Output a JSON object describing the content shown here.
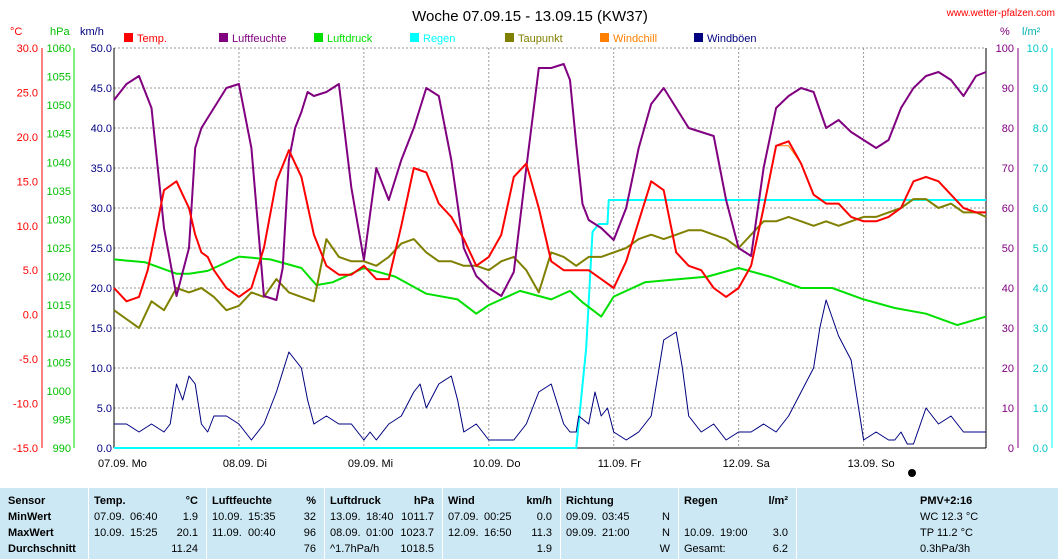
{
  "title": "Woche 07.09.15 - 13.09.15 (KW37)",
  "site": "www.wetter-pfalzen.com",
  "units": {
    "temp": "°C",
    "pressure": "hPa",
    "wind": "km/h",
    "humidity": "%",
    "rain": "l/m²"
  },
  "colors": {
    "temp": "#ff0000",
    "humidity": "#800080",
    "pressure": "#00e000",
    "rain": "#00ffff",
    "dewpoint": "#808000",
    "windchill": "#ff8000",
    "gust": "#000080",
    "grid": "#999999",
    "stats_bg": "#cce8f4"
  },
  "legend": [
    {
      "label": "Temp.",
      "color": "#ff0000"
    },
    {
      "label": "Luftfeuchte",
      "color": "#800080"
    },
    {
      "label": "Luftdruck",
      "color": "#00e000"
    },
    {
      "label": "Regen",
      "color": "#00ffff"
    },
    {
      "label": "Taupunkt",
      "color": "#808000"
    },
    {
      "label": "Windchill",
      "color": "#ff8000"
    },
    {
      "label": "Windböen",
      "color": "#000080"
    }
  ],
  "chart_data": {
    "type": "line",
    "title": "Woche 07.09.15 - 13.09.15 (KW37)",
    "x_unit": "days",
    "x_range": [
      0,
      6.98
    ],
    "day_labels": [
      "07.09. Mo",
      "08.09. Di",
      "09.09. Mi",
      "10.09. Do",
      "11.09. Fr",
      "12.09. Sa",
      "13.09. So"
    ],
    "axes": {
      "temp": {
        "ticks": [
          "30.0",
          "25.0",
          "20.0",
          "15.0",
          "10.0",
          "5.0",
          "0.0",
          "-5.0",
          "-10.0",
          "-15.0"
        ],
        "range": [
          -15,
          30
        ]
      },
      "pressure": {
        "ticks": [
          "1060",
          "1055",
          "1050",
          "1045",
          "1040",
          "1035",
          "1030",
          "1025",
          "1020",
          "1015",
          "1010",
          "1005",
          "1000",
          "995",
          "990"
        ],
        "range": [
          990,
          1060
        ]
      },
      "wind": {
        "ticks": [
          "50.0",
          "45.0",
          "40.0",
          "35.0",
          "30.0",
          "25.0",
          "20.0",
          "15.0",
          "10.0",
          "5.0",
          "0.0"
        ],
        "range": [
          0,
          50
        ]
      },
      "humidity": {
        "ticks": [
          "100",
          "90",
          "80",
          "70",
          "60",
          "50",
          "40",
          "30",
          "20",
          "10",
          "0"
        ],
        "range": [
          0,
          100
        ]
      },
      "rain": {
        "ticks": [
          "10.0",
          "9.0",
          "8.0",
          "7.0",
          "6.0",
          "5.0",
          "4.0",
          "3.0",
          "2.0",
          "1.0",
          "0.0"
        ],
        "range": [
          0,
          10
        ]
      }
    },
    "grid": true,
    "series": [
      {
        "name": "Temp.",
        "axis": "temp",
        "color": "#ff0000",
        "x": [
          0,
          0.1,
          0.2,
          0.27,
          0.4,
          0.5,
          0.55,
          0.6,
          0.65,
          0.7,
          0.75,
          0.8,
          0.9,
          1.0,
          1.1,
          1.2,
          1.3,
          1.4,
          1.5,
          1.6,
          1.7,
          1.8,
          1.9,
          2.0,
          2.1,
          2.2,
          2.3,
          2.4,
          2.5,
          2.6,
          2.7,
          2.8,
          2.9,
          3.0,
          3.1,
          3.2,
          3.3,
          3.4,
          3.5,
          3.6,
          3.7,
          3.8,
          3.9,
          4.0,
          4.1,
          4.2,
          4.3,
          4.4,
          4.5,
          4.6,
          4.7,
          4.8,
          4.9,
          5.0,
          5.1,
          5.2,
          5.3,
          5.4,
          5.5,
          5.6,
          5.7,
          5.8,
          5.9,
          6.0,
          6.1,
          6.2,
          6.3,
          6.4,
          6.5,
          6.6,
          6.7,
          6.8,
          6.9,
          6.98
        ],
        "y": [
          3.0,
          1.5,
          2.0,
          5.0,
          14.0,
          15.0,
          13.5,
          12.0,
          9.0,
          7.0,
          6.5,
          5.0,
          3.0,
          2.0,
          3.0,
          7.5,
          15.0,
          18.5,
          15.5,
          9.0,
          5.5,
          4.5,
          4.5,
          5.5,
          4.0,
          4.0,
          10.0,
          16.5,
          16.0,
          12.5,
          11.0,
          8.5,
          5.5,
          6.5,
          9.0,
          15.5,
          17.0,
          12.0,
          6.0,
          5.0,
          5.0,
          5.0,
          4.0,
          3.0,
          6.0,
          10.5,
          15.0,
          14.0,
          7.0,
          5.5,
          5.0,
          3.0,
          2.0,
          3.0,
          5.5,
          12.0,
          19.0,
          19.5,
          17.0,
          13.5,
          12.5,
          12.5,
          11.0,
          10.5,
          10.5,
          11.0,
          12.0,
          15.0,
          15.5,
          15.0,
          13.5,
          12.0,
          11.5,
          11.5
        ]
      },
      {
        "name": "Luftfeuchte",
        "axis": "humidity",
        "color": "#800080",
        "x": [
          0,
          0.1,
          0.2,
          0.3,
          0.4,
          0.5,
          0.55,
          0.6,
          0.65,
          0.7,
          0.8,
          0.9,
          1.0,
          1.1,
          1.2,
          1.3,
          1.35,
          1.4,
          1.45,
          1.5,
          1.55,
          1.6,
          1.7,
          1.8,
          1.9,
          2.0,
          2.1,
          2.2,
          2.3,
          2.4,
          2.5,
          2.6,
          2.7,
          2.8,
          2.9,
          3.0,
          3.1,
          3.2,
          3.3,
          3.4,
          3.5,
          3.6,
          3.65,
          3.7,
          3.75,
          3.8,
          3.9,
          4.0,
          4.1,
          4.2,
          4.3,
          4.4,
          4.5,
          4.6,
          4.7,
          4.8,
          4.9,
          5.0,
          5.1,
          5.2,
          5.3,
          5.4,
          5.5,
          5.6,
          5.7,
          5.8,
          5.9,
          6.0,
          6.1,
          6.2,
          6.3,
          6.4,
          6.5,
          6.6,
          6.7,
          6.8,
          6.9,
          6.98
        ],
        "y": [
          87,
          91,
          93,
          85,
          55,
          38,
          44,
          50,
          75,
          80,
          85,
          90,
          91,
          75,
          38,
          37,
          45,
          72,
          80,
          84,
          89,
          88,
          89,
          91,
          65,
          47,
          70,
          62,
          72,
          80,
          90,
          88,
          72,
          50,
          43,
          40,
          38,
          44,
          70,
          95,
          95,
          96,
          92,
          76,
          61,
          57,
          55,
          52,
          60,
          75,
          86,
          90,
          85,
          80,
          79,
          78,
          62,
          50,
          48,
          70,
          85,
          88,
          90,
          89,
          80,
          82,
          79,
          77,
          75,
          77,
          85,
          90,
          93,
          94,
          92,
          88,
          93,
          94
        ]
      },
      {
        "name": "Luftdruck",
        "axis": "pressure",
        "color": "#00e000",
        "x": [
          0,
          0.25,
          0.5,
          0.6,
          0.75,
          1.0,
          1.25,
          1.5,
          1.62,
          1.75,
          2.0,
          2.25,
          2.5,
          2.75,
          2.9,
          3.0,
          3.25,
          3.5,
          3.65,
          3.75,
          3.9,
          4.0,
          4.25,
          4.5,
          4.75,
          5.0,
          5.25,
          5.5,
          5.75,
          6.0,
          6.25,
          6.5,
          6.75,
          6.98
        ],
        "y": [
          1023.0,
          1022.5,
          1020.5,
          1020.5,
          1021.0,
          1023.5,
          1023.0,
          1021.5,
          1018.5,
          1019.0,
          1021.5,
          1020.0,
          1017.0,
          1016.0,
          1013.5,
          1015.0,
          1017.5,
          1016.0,
          1017.5,
          1015.5,
          1013.0,
          1016.5,
          1019.0,
          1019.5,
          1020.0,
          1021.5,
          1020.0,
          1018.0,
          1018.0,
          1016.0,
          1014.5,
          1013.5,
          1011.5,
          1013.0
        ]
      },
      {
        "name": "Regen",
        "axis": "rain",
        "color": "#00ffff",
        "x": [
          0,
          3.7,
          3.78,
          3.83,
          3.88,
          3.9,
          3.95,
          3.96,
          4.0,
          4.5,
          5.0,
          6.0,
          6.98
        ],
        "y": [
          0.0,
          0.0,
          2.5,
          5.4,
          5.6,
          5.6,
          5.6,
          6.2,
          6.2,
          6.2,
          6.2,
          6.2,
          6.2
        ]
      },
      {
        "name": "Taupunkt",
        "axis": "temp",
        "color": "#808000",
        "x": [
          0,
          0.2,
          0.3,
          0.4,
          0.5,
          0.6,
          0.7,
          0.8,
          0.9,
          1.0,
          1.1,
          1.2,
          1.3,
          1.4,
          1.5,
          1.6,
          1.7,
          1.8,
          1.9,
          2.0,
          2.1,
          2.2,
          2.3,
          2.4,
          2.5,
          2.6,
          2.7,
          2.8,
          2.9,
          3.0,
          3.1,
          3.2,
          3.3,
          3.4,
          3.5,
          3.6,
          3.7,
          3.8,
          3.9,
          4.0,
          4.1,
          4.2,
          4.3,
          4.4,
          4.5,
          4.6,
          4.7,
          4.8,
          4.9,
          5.0,
          5.1,
          5.2,
          5.3,
          5.4,
          5.5,
          5.6,
          5.7,
          5.8,
          5.9,
          6.0,
          6.1,
          6.2,
          6.3,
          6.4,
          6.5,
          6.6,
          6.7,
          6.8,
          6.9,
          6.98
        ],
        "y": [
          0.5,
          -1.5,
          1.5,
          0.5,
          3.0,
          2.5,
          3.0,
          2.0,
          0.5,
          1.0,
          2.5,
          2.0,
          4.0,
          2.5,
          2.0,
          1.5,
          8.5,
          6.5,
          6.0,
          6.0,
          5.5,
          6.5,
          8.0,
          8.5,
          7.0,
          6.0,
          6.0,
          5.5,
          5.5,
          5.0,
          6.0,
          6.5,
          5.0,
          2.5,
          7.0,
          6.5,
          5.5,
          6.5,
          6.5,
          7.0,
          7.5,
          8.5,
          9.0,
          8.5,
          9.0,
          9.5,
          9.5,
          9.0,
          8.5,
          7.5,
          9.0,
          10.5,
          10.5,
          11.0,
          10.5,
          10.0,
          10.5,
          10.0,
          10.5,
          11.0,
          11.0,
          11.5,
          12.0,
          13.0,
          13.0,
          12.0,
          12.5,
          11.5,
          11.5,
          11.0
        ]
      },
      {
        "name": "Windböen",
        "axis": "wind",
        "color": "#000080",
        "x": [
          0,
          0.1,
          0.2,
          0.3,
          0.4,
          0.45,
          0.5,
          0.55,
          0.6,
          0.65,
          0.7,
          0.75,
          0.8,
          0.9,
          1.0,
          1.1,
          1.2,
          1.3,
          1.4,
          1.5,
          1.55,
          1.6,
          1.7,
          1.8,
          1.9,
          2.0,
          2.05,
          2.1,
          2.2,
          2.3,
          2.4,
          2.45,
          2.5,
          2.6,
          2.7,
          2.75,
          2.8,
          2.9,
          3.0,
          3.1,
          3.2,
          3.3,
          3.4,
          3.5,
          3.6,
          3.65,
          3.7,
          3.72,
          3.8,
          3.85,
          3.9,
          3.95,
          4.0,
          4.1,
          4.2,
          4.3,
          4.4,
          4.5,
          4.55,
          4.6,
          4.7,
          4.8,
          4.9,
          5.0,
          5.1,
          5.2,
          5.3,
          5.4,
          5.5,
          5.6,
          5.65,
          5.7,
          5.8,
          5.9,
          6.0,
          6.1,
          6.2,
          6.25,
          6.3,
          6.35,
          6.4,
          6.5,
          6.6,
          6.7,
          6.8,
          6.98
        ],
        "y": [
          3.0,
          3.0,
          2.0,
          3.0,
          2.0,
          3.0,
          8.0,
          6.0,
          9.0,
          8.0,
          3.0,
          2.0,
          4.0,
          4.0,
          3.0,
          1.0,
          3.0,
          7.0,
          12.0,
          10.0,
          6.0,
          3.0,
          4.0,
          3.0,
          3.0,
          1.0,
          2.0,
          1.0,
          3.0,
          4.0,
          7.0,
          8.0,
          5.0,
          8.0,
          9.0,
          6.0,
          2.0,
          3.0,
          1.0,
          1.0,
          1.0,
          3.0,
          7.0,
          8.0,
          3.0,
          2.0,
          2.0,
          4.0,
          3.0,
          7.0,
          4.0,
          5.0,
          2.0,
          1.0,
          2.0,
          4.0,
          13.5,
          14.5,
          10.0,
          4.0,
          2.0,
          3.0,
          1.0,
          2.0,
          2.0,
          3.0,
          2.0,
          4.0,
          7.0,
          10.0,
          15.0,
          18.5,
          14.0,
          11.0,
          1.0,
          2.0,
          1.0,
          1.0,
          2.0,
          0.5,
          0.5,
          5.0,
          3.0,
          4.0,
          2.0,
          2.0
        ]
      },
      {
        "name": "Windchill",
        "axis": "temp",
        "color": "#ff8000",
        "x": [
          0,
          0.1,
          0.2,
          0.27,
          0.4,
          0.5,
          0.55,
          0.6,
          0.65,
          0.7,
          0.75,
          0.8,
          0.9,
          1.0,
          1.1,
          1.2,
          1.3,
          1.4,
          1.5,
          1.6,
          1.7,
          1.8,
          1.9,
          2.0,
          2.1,
          2.2,
          2.3,
          2.4,
          2.5,
          2.6,
          2.7,
          2.8,
          2.9,
          3.0,
          3.1,
          3.2,
          3.3,
          3.4,
          3.5,
          3.6,
          3.7,
          3.8,
          3.9,
          4.0,
          4.1,
          4.2,
          4.3,
          4.4,
          4.5,
          4.6,
          4.7,
          4.8,
          4.9,
          5.0,
          5.1,
          5.2,
          5.3,
          5.4,
          5.5,
          5.6,
          5.7,
          5.8,
          5.9,
          6.0,
          6.1,
          6.2,
          6.3,
          6.4,
          6.5,
          6.6,
          6.7,
          6.8,
          6.9,
          6.98
        ],
        "y": [
          3.0,
          1.5,
          2.0,
          5.0,
          14.0,
          15.0,
          13.5,
          12.0,
          9.0,
          7.0,
          6.5,
          5.0,
          3.0,
          2.0,
          3.0,
          7.5,
          15.0,
          18.5,
          15.5,
          9.0,
          5.5,
          4.5,
          4.5,
          5.5,
          4.0,
          4.0,
          10.0,
          16.5,
          16.0,
          12.5,
          11.0,
          8.5,
          5.5,
          6.5,
          9.0,
          15.5,
          17.0,
          12.0,
          6.0,
          5.0,
          5.0,
          5.0,
          4.0,
          3.0,
          6.0,
          10.5,
          15.0,
          14.0,
          7.0,
          5.5,
          5.0,
          3.0,
          2.0,
          3.0,
          5.5,
          12.0,
          19.0,
          19.0,
          17.0,
          13.5,
          12.5,
          12.5,
          11.0,
          10.5,
          10.5,
          11.0,
          12.0,
          15.0,
          15.5,
          15.0,
          13.5,
          12.0,
          11.5,
          11.5
        ]
      }
    ]
  },
  "stats": {
    "sensor": {
      "header": "Sensor",
      "rows": [
        "MinWert",
        "MaxWert",
        "Durchschnitt"
      ]
    },
    "temp": {
      "header": "Temp.",
      "unit": "°C",
      "rows": [
        [
          "07.09.",
          "06:40",
          "1.9"
        ],
        [
          "10.09.",
          "15:25",
          "20.1"
        ],
        [
          "",
          "",
          "11.24"
        ]
      ]
    },
    "humidity": {
      "header": "Luftfeuchte",
      "unit": "%",
      "rows": [
        [
          "10.09.",
          "15:35",
          "32"
        ],
        [
          "11.09.",
          "00:40",
          "96"
        ],
        [
          "",
          "",
          "76"
        ]
      ]
    },
    "pressure": {
      "header": "Luftdruck",
      "unit": "hPa",
      "rows": [
        [
          "13.09.",
          "18:40",
          "1011.7"
        ],
        [
          "08.09.",
          "01:00",
          "1023.7"
        ],
        [
          "^1.7hPa/h",
          "",
          "1018.5"
        ]
      ]
    },
    "wind": {
      "header": "Wind",
      "unit": "km/h",
      "rows": [
        [
          "07.09.",
          "00:25",
          "0.0"
        ],
        [
          "12.09.",
          "16:50",
          "11.3"
        ],
        [
          "",
          "",
          "1.9"
        ]
      ]
    },
    "direction": {
      "header": "Richtung",
      "rows": [
        [
          "09.09.",
          "03:45",
          "N"
        ],
        [
          "09.09.",
          "21:00",
          "N"
        ],
        [
          "",
          "",
          "W"
        ]
      ]
    },
    "rain": {
      "header": "Regen",
      "unit": "l/m²",
      "rows": [
        [
          "",
          "",
          ""
        ],
        [
          "10.09.",
          "19:00",
          "3.0"
        ],
        [
          "Gesamt:",
          "",
          "6.2"
        ]
      ]
    },
    "pmv": {
      "header": "PMV+2:16",
      "rows": [
        "WC 12.3 °C",
        "TP 11.2 °C",
        "0.3hPa/3h"
      ]
    }
  }
}
